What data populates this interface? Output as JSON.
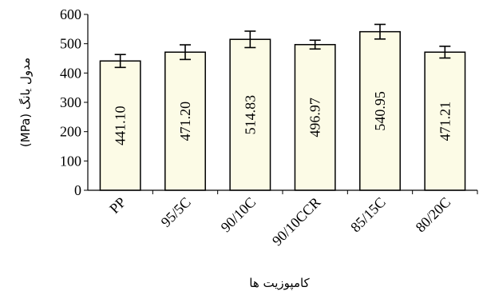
{
  "chart_data": {
    "type": "bar",
    "categories": [
      "PP",
      "95/5C",
      "90/10C",
      "90/10CCR",
      "85/15C",
      "80/20C"
    ],
    "values": [
      441.1,
      471.2,
      514.83,
      496.97,
      540.95,
      471.21
    ],
    "value_labels": [
      "441.10",
      "471.20",
      "514.83",
      "496.97",
      "540.95",
      "471.21"
    ],
    "error": [
      22,
      25,
      28,
      15,
      25,
      20
    ],
    "ylim": [
      0,
      600
    ],
    "yticks": [
      0,
      100,
      200,
      300,
      400,
      500,
      600
    ],
    "xlabel": "کامپوزیت ها",
    "ylabel": "مدول یانگ (MPa)",
    "grid": false,
    "colors": {
      "bar_fill": "#fcfbe6",
      "bar_stroke": "#000000",
      "axis": "#000000"
    }
  }
}
